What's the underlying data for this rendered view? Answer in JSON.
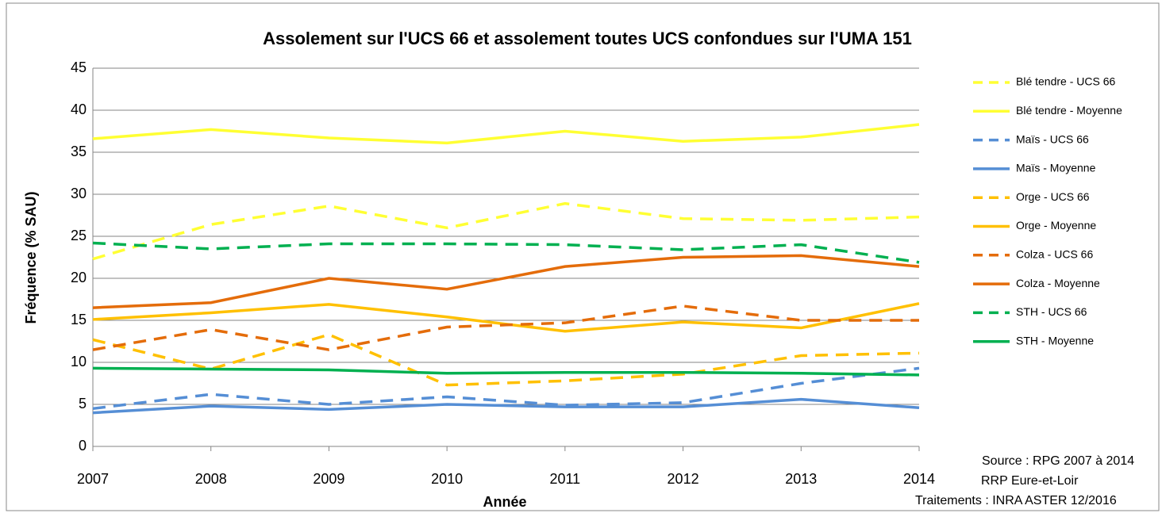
{
  "chart_data": {
    "type": "line",
    "title": "Assolement sur l'UCS 66 et assolement toutes UCS confondues sur l'UMA 151",
    "x_label": "Année",
    "y_label": "Fréquence (% SAU)",
    "x": [
      2007,
      2008,
      2009,
      2010,
      2011,
      2012,
      2013,
      2014
    ],
    "xlim": [
      2007,
      2014
    ],
    "xticks": [
      2007,
      2008,
      2009,
      2010,
      2011,
      2012,
      2013,
      2014
    ],
    "ylim": [
      0,
      45
    ],
    "yticks": [
      0,
      5,
      10,
      15,
      20,
      25,
      30,
      35,
      40,
      45
    ],
    "grid": true,
    "legend": "right",
    "series": [
      {
        "name": "Blé tendre - UCS 66",
        "color": "#ffff33",
        "dashed": true,
        "values": [
          22.3,
          26.4,
          28.6,
          26.0,
          28.9,
          27.1,
          26.9,
          27.3
        ]
      },
      {
        "name": "Blé tendre - Moyenne",
        "color": "#ffff33",
        "dashed": false,
        "values": [
          36.6,
          37.7,
          36.7,
          36.1,
          37.5,
          36.3,
          36.8,
          38.3
        ]
      },
      {
        "name": "Maïs - UCS 66",
        "color": "#558ed5",
        "dashed": true,
        "values": [
          4.5,
          6.2,
          5.0,
          5.9,
          4.9,
          5.2,
          7.5,
          9.3
        ]
      },
      {
        "name": "Maïs - Moyenne",
        "color": "#558ed5",
        "dashed": false,
        "values": [
          4.0,
          4.8,
          4.4,
          5.0,
          4.7,
          4.7,
          5.6,
          4.6
        ]
      },
      {
        "name": "Orge - UCS 66",
        "color": "#ffc000",
        "dashed": true,
        "values": [
          12.7,
          9.2,
          13.3,
          7.3,
          7.8,
          8.6,
          10.8,
          11.1
        ]
      },
      {
        "name": "Orge - Moyenne",
        "color": "#ffc000",
        "dashed": false,
        "values": [
          15.1,
          15.9,
          16.9,
          15.4,
          13.7,
          14.8,
          14.1,
          17.0
        ]
      },
      {
        "name": "Colza - UCS 66",
        "color": "#e46c0a",
        "dashed": true,
        "values": [
          11.5,
          13.9,
          11.5,
          14.2,
          14.7,
          16.7,
          15.0,
          15.0
        ]
      },
      {
        "name": "Colza - Moyenne",
        "color": "#e46c0a",
        "dashed": false,
        "values": [
          16.5,
          17.1,
          20.0,
          18.7,
          21.4,
          22.5,
          22.7,
          21.4
        ]
      },
      {
        "name": "STH - UCS 66",
        "color": "#00b050",
        "dashed": true,
        "values": [
          24.2,
          23.5,
          24.1,
          24.1,
          24.0,
          23.4,
          24.0,
          21.9
        ]
      },
      {
        "name": "STH - Moyenne",
        "color": "#00b050",
        "dashed": false,
        "values": [
          9.3,
          9.2,
          9.1,
          8.7,
          8.8,
          8.8,
          8.7,
          8.5
        ]
      }
    ],
    "source": [
      "Source : RPG 2007 à 2014",
      "RRP Eure-et-Loir",
      "Traitements : INRA ASTER 12/2016"
    ]
  }
}
